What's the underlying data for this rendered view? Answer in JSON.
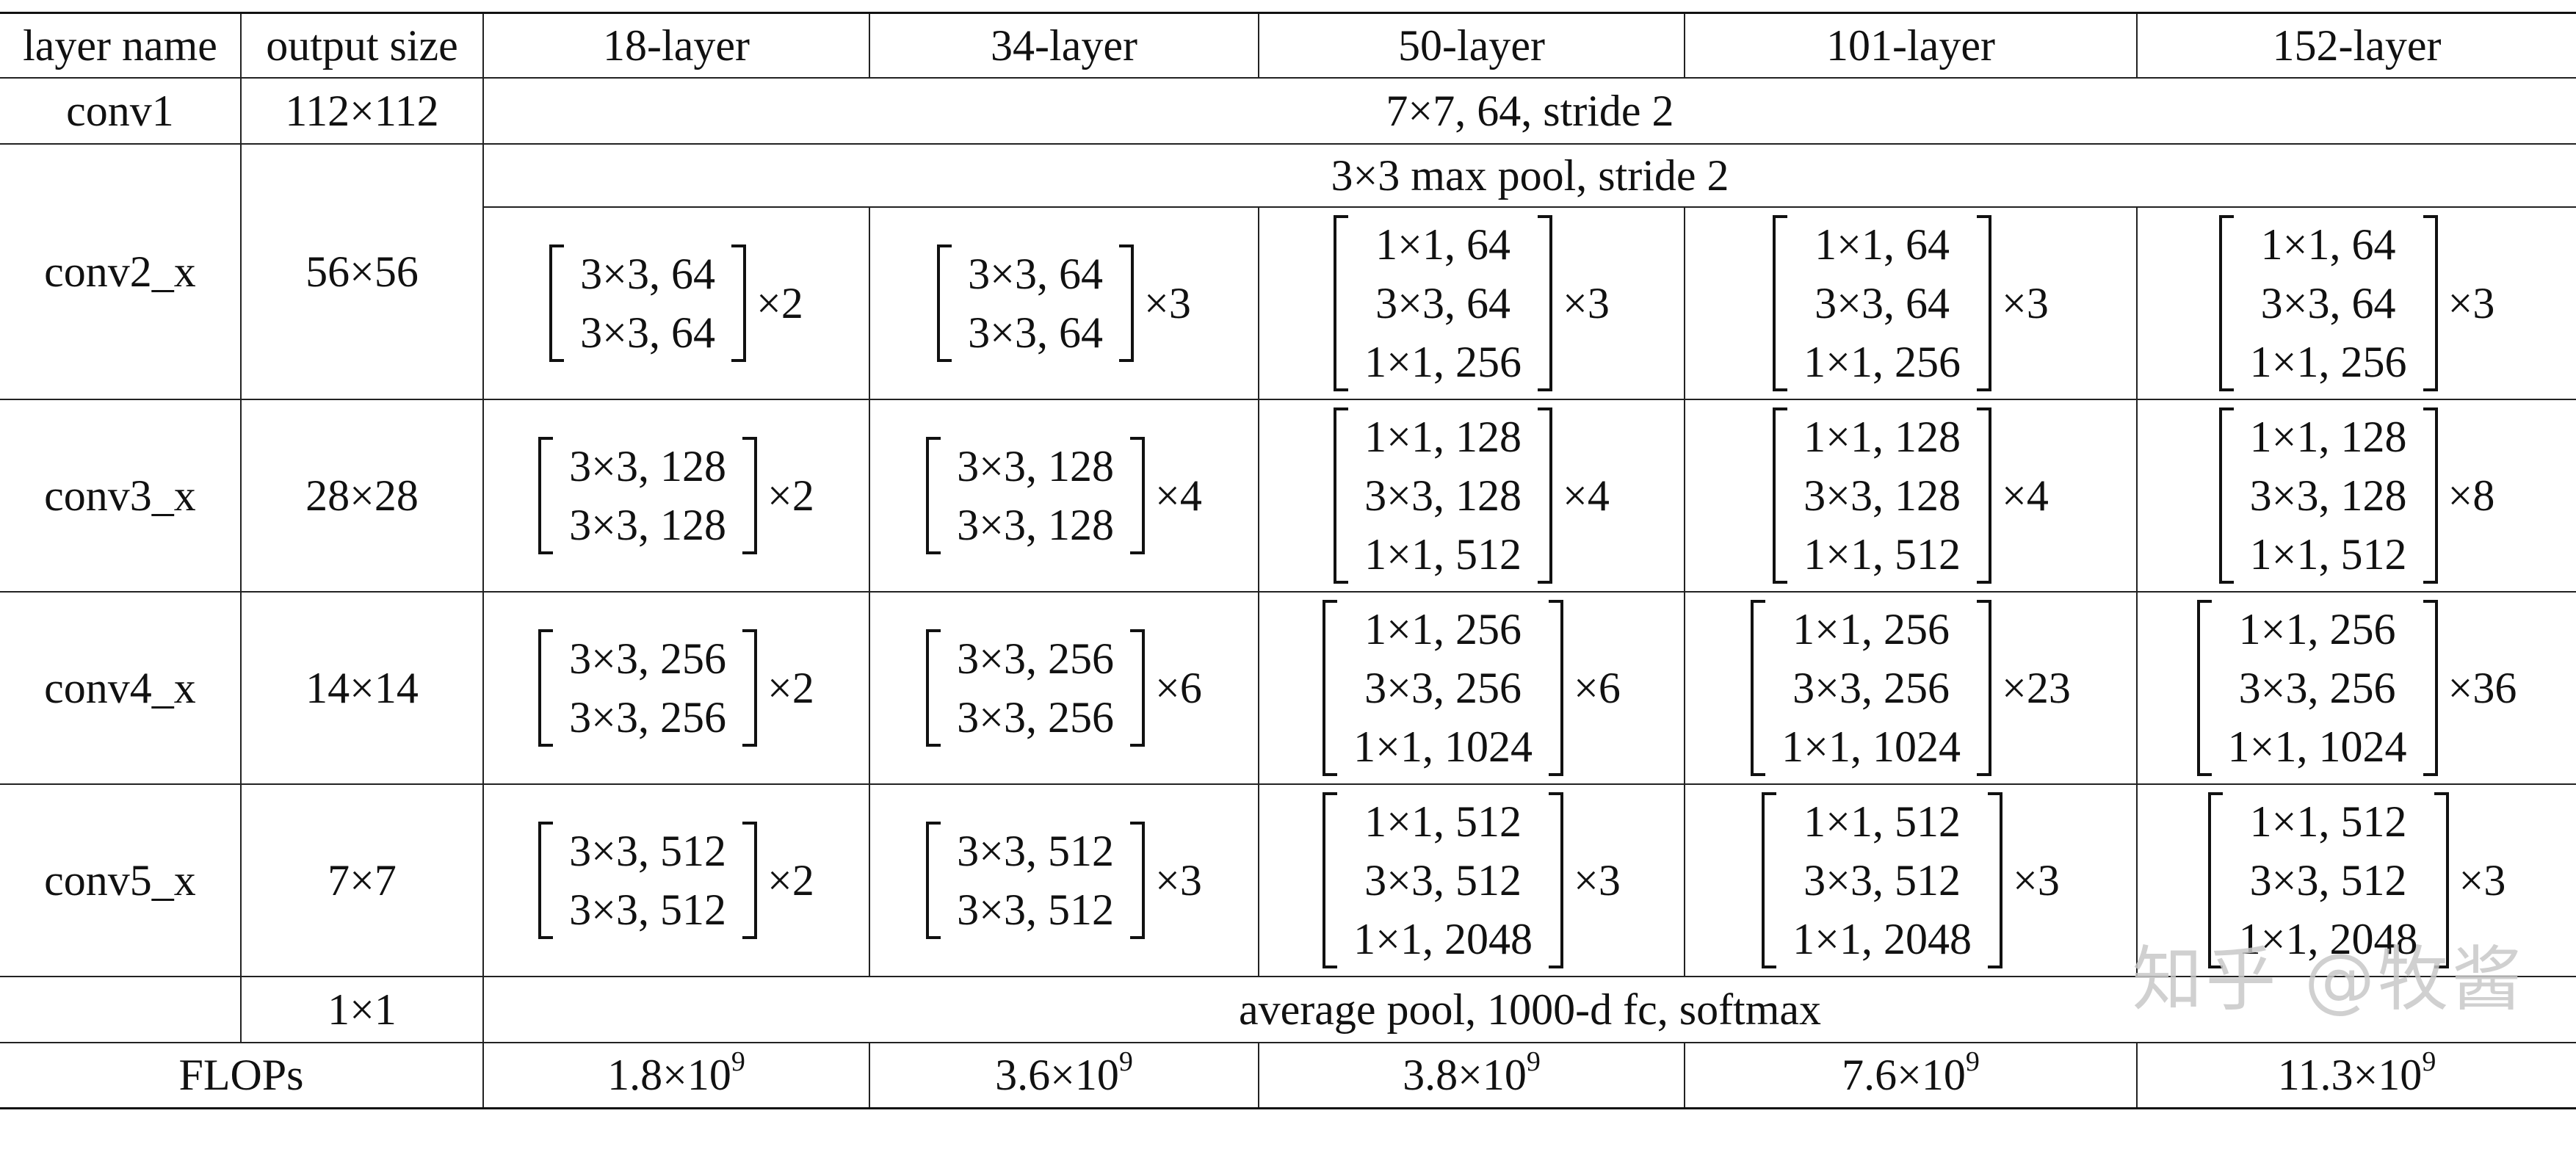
{
  "header": {
    "layer_name": "layer name",
    "output_size": "output size",
    "models": [
      "18-layer",
      "34-layer",
      "50-layer",
      "101-layer",
      "152-layer"
    ]
  },
  "conv1": {
    "name": "conv1",
    "output": "112×112",
    "spec": "7×7, 64, stride 2"
  },
  "pool": {
    "spec": "3×3 max pool, stride 2"
  },
  "stages": [
    {
      "name": "conv2_x",
      "output": "56×56",
      "blocks": [
        {
          "lines": [
            "3×3, 64",
            "3×3, 64"
          ],
          "mult": "×2"
        },
        {
          "lines": [
            "3×3, 64",
            "3×3, 64"
          ],
          "mult": "×3"
        },
        {
          "lines": [
            "1×1, 64",
            "3×3, 64",
            "1×1, 256"
          ],
          "mult": "×3"
        },
        {
          "lines": [
            "1×1, 64",
            "3×3, 64",
            "1×1, 256"
          ],
          "mult": "×3"
        },
        {
          "lines": [
            "1×1, 64",
            "3×3, 64",
            "1×1, 256"
          ],
          "mult": "×3"
        }
      ]
    },
    {
      "name": "conv3_x",
      "output": "28×28",
      "blocks": [
        {
          "lines": [
            "3×3, 128",
            "3×3, 128"
          ],
          "mult": "×2"
        },
        {
          "lines": [
            "3×3, 128",
            "3×3, 128"
          ],
          "mult": "×4"
        },
        {
          "lines": [
            "1×1, 128",
            "3×3, 128",
            "1×1, 512"
          ],
          "mult": "×4"
        },
        {
          "lines": [
            "1×1, 128",
            "3×3, 128",
            "1×1, 512"
          ],
          "mult": "×4"
        },
        {
          "lines": [
            "1×1, 128",
            "3×3, 128",
            "1×1, 512"
          ],
          "mult": "×8"
        }
      ]
    },
    {
      "name": "conv4_x",
      "output": "14×14",
      "blocks": [
        {
          "lines": [
            "3×3, 256",
            "3×3, 256"
          ],
          "mult": "×2"
        },
        {
          "lines": [
            "3×3, 256",
            "3×3, 256"
          ],
          "mult": "×6"
        },
        {
          "lines": [
            "1×1, 256",
            "3×3, 256",
            "1×1, 1024"
          ],
          "mult": "×6"
        },
        {
          "lines": [
            "1×1, 256",
            "3×3, 256",
            "1×1, 1024"
          ],
          "mult": "×23"
        },
        {
          "lines": [
            "1×1, 256",
            "3×3, 256",
            "1×1, 1024"
          ],
          "mult": "×36"
        }
      ]
    },
    {
      "name": "conv5_x",
      "output": "7×7",
      "blocks": [
        {
          "lines": [
            "3×3, 512",
            "3×3, 512"
          ],
          "mult": "×2"
        },
        {
          "lines": [
            "3×3, 512",
            "3×3, 512"
          ],
          "mult": "×3"
        },
        {
          "lines": [
            "1×1, 512",
            "3×3, 512",
            "1×1, 2048"
          ],
          "mult": "×3"
        },
        {
          "lines": [
            "1×1, 512",
            "3×3, 512",
            "1×1, 2048"
          ],
          "mult": "×3"
        },
        {
          "lines": [
            "1×1, 512",
            "3×3, 512",
            "1×1, 2048"
          ],
          "mult": "×3"
        }
      ]
    }
  ],
  "final": {
    "output": "1×1",
    "spec": "average pool, 1000-d fc, softmax"
  },
  "flops": {
    "label": "FLOPs",
    "values": [
      {
        "mantissa": "1.8×10",
        "exp": "9"
      },
      {
        "mantissa": "3.6×10",
        "exp": "9"
      },
      {
        "mantissa": "3.8×10",
        "exp": "9"
      },
      {
        "mantissa": "7.6×10",
        "exp": "9"
      },
      {
        "mantissa": "11.3×10",
        "exp": "9"
      }
    ]
  },
  "watermark": "知乎 @牧酱"
}
